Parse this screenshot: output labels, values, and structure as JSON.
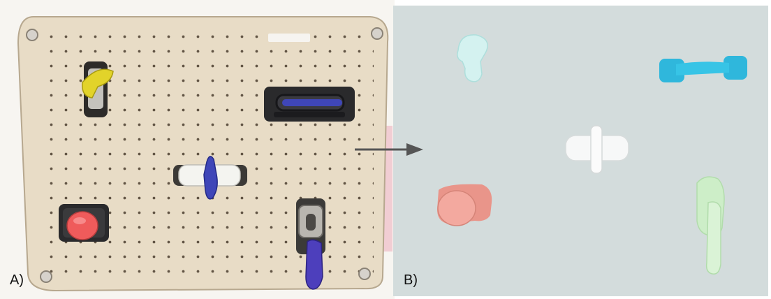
{
  "panels": {
    "a": {
      "label": "A)"
    },
    "b": {
      "label": "B)"
    }
  },
  "objects_a": [
    "yellow-lever-switch",
    "black-slot-slider",
    "blue-white-wing-knob",
    "red-push-button",
    "purple-metal-latch"
  ],
  "objects_b": [
    "light-cyan-lever",
    "cyan-slider-bar",
    "white-cross-knob",
    "salmon-button",
    "light-green-latch"
  ],
  "colors": {
    "board": "#e6dac4",
    "scene_bg": "#d3dcdc",
    "arrow": "#555555",
    "yellow": "#e2d32a",
    "blue": "#3f46b8",
    "red": "#ef5b5b",
    "cyan": "#2fb7dc",
    "light_cyan": "#d4f2f0",
    "salmon": "#e9958a",
    "light_green": "#cdeec8"
  }
}
